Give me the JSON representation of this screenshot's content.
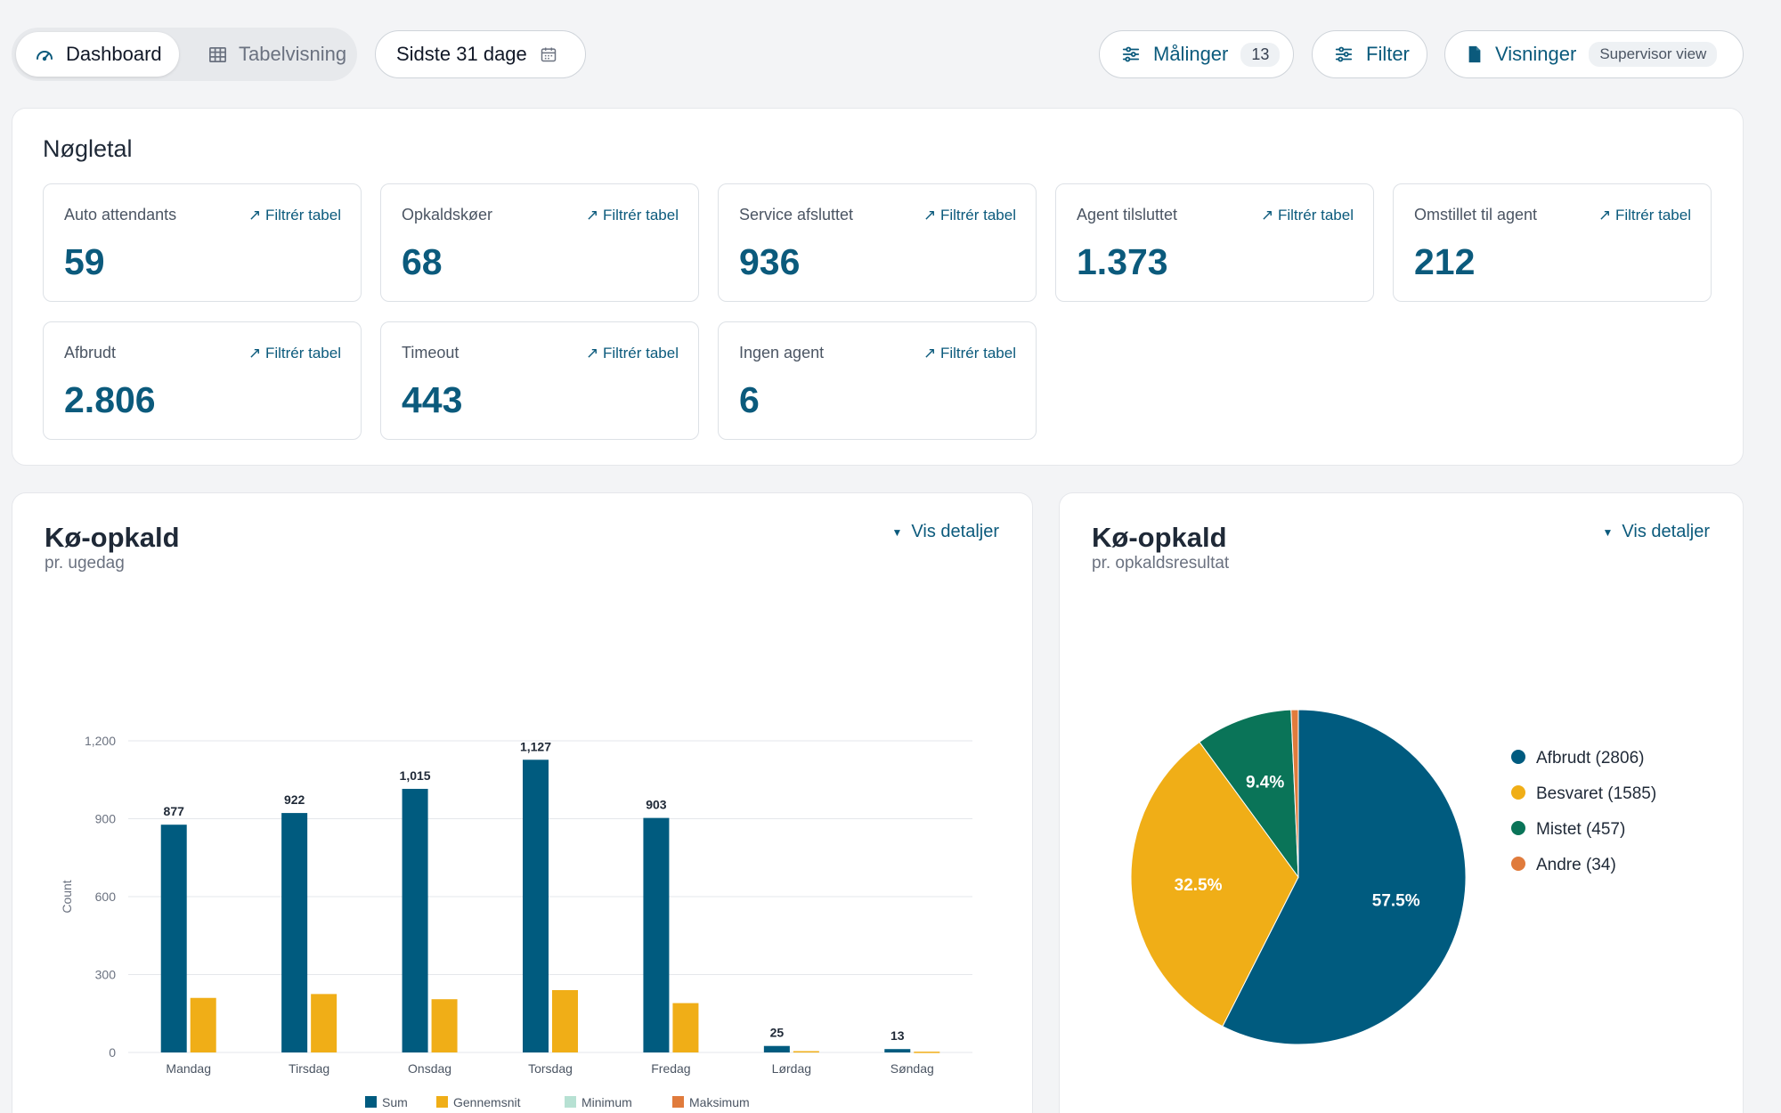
{
  "toolbar": {
    "tab_dashboard": "Dashboard",
    "tab_table": "Tabelvisning",
    "date_range": "Sidste 31 dage",
    "measures_label": "Målinger",
    "measures_count": "13",
    "filter_label": "Filter",
    "views_label": "Visninger",
    "views_badge": "Supervisor view"
  },
  "kpi": {
    "title": "Nøgletal",
    "filter_link": "Filtrér tabel",
    "items": [
      {
        "label": "Auto attendants",
        "value": "59"
      },
      {
        "label": "Opkaldskøer",
        "value": "68"
      },
      {
        "label": "Service afsluttet",
        "value": "936"
      },
      {
        "label": "Agent tilsluttet",
        "value": "1.373"
      },
      {
        "label": "Omstillet til agent",
        "value": "212"
      },
      {
        "label": "Afbrudt",
        "value": "2.806"
      },
      {
        "label": "Timeout",
        "value": "443"
      },
      {
        "label": "Ingen agent",
        "value": "6"
      }
    ]
  },
  "bar_card": {
    "title": "Kø-opkald",
    "subtitle": "pr. ugedag",
    "details": "Vis detaljer"
  },
  "pie_card": {
    "title": "Kø-opkald",
    "subtitle": "pr. opkaldsresultat",
    "details": "Vis detaljer"
  },
  "colors": {
    "primary": "#0b5a7c",
    "sum": "#005b7f",
    "average": "#f0ae17",
    "minimum": "#b7e1d3",
    "maximum": "#e07b3c",
    "missed": "#0a7458"
  },
  "chart_data": [
    {
      "type": "bar",
      "ylabel": "Count",
      "ylim": [
        0,
        1200
      ],
      "yticks": [
        "0",
        "300",
        "600",
        "900",
        "1,200"
      ],
      "categories": [
        "Mandag",
        "Tirsdag",
        "Onsdag",
        "Torsdag",
        "Fredag",
        "Lørdag",
        "Søndag"
      ],
      "series": [
        {
          "name": "Sum",
          "values": [
            877,
            922,
            1015,
            1127,
            903,
            25,
            13
          ],
          "labels": [
            "877",
            "922",
            "1,015",
            "1,127",
            "903",
            "25",
            "13"
          ]
        },
        {
          "name": "Gennemsnit",
          "values": [
            210,
            225,
            205,
            240,
            190,
            5,
            3
          ]
        },
        {
          "name": "Minimum",
          "values": [
            0,
            0,
            0,
            0,
            0,
            0,
            0
          ]
        },
        {
          "name": "Maksimum",
          "values": [
            0,
            0,
            0,
            0,
            0,
            0,
            0
          ]
        }
      ],
      "legend": "bottom",
      "grid": true
    },
    {
      "type": "pie",
      "slices": [
        {
          "name": "Afbrudt (2806)",
          "value": 2806,
          "label": "57.5%"
        },
        {
          "name": "Besvaret (1585)",
          "value": 1585,
          "label": "32.5%"
        },
        {
          "name": "Mistet (457)",
          "value": 457,
          "label": "9.4%"
        },
        {
          "name": "Andre (34)",
          "value": 34,
          "label": ""
        }
      ],
      "legend": "right"
    }
  ]
}
